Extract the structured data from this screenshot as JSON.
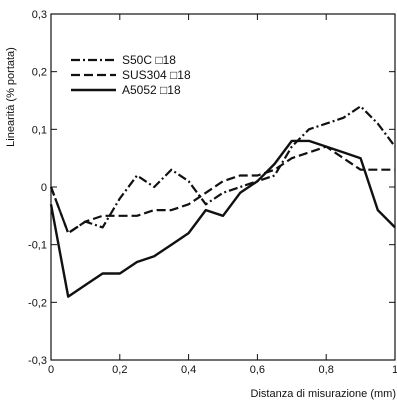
{
  "chart_data": {
    "type": "line",
    "xlabel": "Distanza di misurazione (mm)",
    "ylabel": "Linearità (% portata)",
    "xlim": [
      0,
      1
    ],
    "ylim": [
      -0.3,
      0.3
    ],
    "x_ticks": [
      {
        "value": 0,
        "label": "0"
      },
      {
        "value": 0.2,
        "label": "0,2"
      },
      {
        "value": 0.4,
        "label": "0,4"
      },
      {
        "value": 0.6,
        "label": "0,6"
      },
      {
        "value": 0.8,
        "label": "0,8"
      },
      {
        "value": 1,
        "label": "1"
      }
    ],
    "y_ticks": [
      {
        "value": 0.3,
        "label": "0,3"
      },
      {
        "value": 0.2,
        "label": "0,2"
      },
      {
        "value": 0.1,
        "label": "0,1"
      },
      {
        "value": 0,
        "label": "0"
      },
      {
        "value": -0.1,
        "label": "-0,1"
      },
      {
        "value": -0.2,
        "label": "-0,2"
      },
      {
        "value": -0.3,
        "label": "-0,3"
      }
    ],
    "grid": false,
    "legend_position": "top-left",
    "series": [
      {
        "name": "S50C □18",
        "style": "dash-dot",
        "x": [
          0,
          0.05,
          0.1,
          0.15,
          0.2,
          0.25,
          0.3,
          0.35,
          0.4,
          0.45,
          0.5,
          0.55,
          0.6,
          0.65,
          0.7,
          0.75,
          0.8,
          0.85,
          0.9,
          0.95,
          1.0
        ],
        "y": [
          0,
          -0.08,
          -0.06,
          -0.07,
          -0.02,
          0.02,
          0.0,
          0.03,
          0.01,
          -0.03,
          -0.01,
          0.0,
          0.01,
          0.02,
          0.07,
          0.1,
          0.11,
          0.12,
          0.14,
          0.11,
          0.07
        ]
      },
      {
        "name": "SUS304 □18",
        "style": "dashed",
        "x": [
          0,
          0.05,
          0.1,
          0.15,
          0.2,
          0.25,
          0.3,
          0.35,
          0.4,
          0.45,
          0.5,
          0.55,
          0.6,
          0.65,
          0.7,
          0.75,
          0.8,
          0.85,
          0.9,
          0.95,
          1.0
        ],
        "y": [
          0,
          -0.08,
          -0.06,
          -0.05,
          -0.05,
          -0.05,
          -0.04,
          -0.04,
          -0.03,
          -0.01,
          0.01,
          0.02,
          0.02,
          0.03,
          0.05,
          0.06,
          0.07,
          0.05,
          0.03,
          0.03,
          0.03
        ]
      },
      {
        "name": "A5052 □18",
        "style": "solid",
        "x": [
          0,
          0.05,
          0.1,
          0.15,
          0.2,
          0.25,
          0.3,
          0.35,
          0.4,
          0.45,
          0.5,
          0.55,
          0.6,
          0.65,
          0.7,
          0.75,
          0.8,
          0.85,
          0.9,
          0.95,
          1.0
        ],
        "y": [
          -0.03,
          -0.19,
          -0.17,
          -0.15,
          -0.15,
          -0.13,
          -0.12,
          -0.1,
          -0.08,
          -0.04,
          -0.05,
          -0.01,
          0.01,
          0.04,
          0.08,
          0.08,
          0.07,
          0.06,
          0.05,
          -0.04,
          -0.07
        ]
      }
    ]
  }
}
